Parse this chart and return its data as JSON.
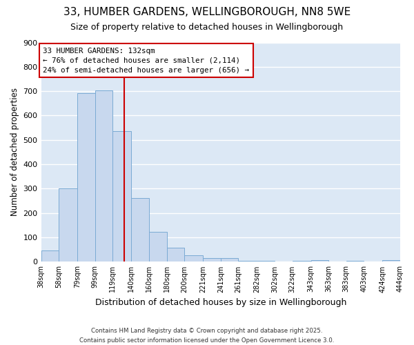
{
  "title_line1": "33, HUMBER GARDENS, WELLINGBOROUGH, NN8 5WE",
  "title_line2": "Size of property relative to detached houses in Wellingborough",
  "xlabel": "Distribution of detached houses by size in Wellingborough",
  "ylabel": "Number of detached properties",
  "bar_edges": [
    38,
    58,
    79,
    99,
    119,
    140,
    160,
    180,
    200,
    221,
    241,
    261,
    282,
    302,
    322,
    343,
    363,
    383,
    403,
    424,
    444
  ],
  "bar_heights": [
    47,
    300,
    693,
    703,
    537,
    262,
    122,
    57,
    27,
    14,
    15,
    5,
    3,
    1,
    5,
    8,
    1,
    4,
    1,
    8
  ],
  "bar_color": "#c8d8ee",
  "bar_edge_color": "#7aaad4",
  "plot_bg_color": "#dce8f5",
  "fig_bg_color": "#ffffff",
  "grid_color": "#ffffff",
  "vline_x": 132,
  "vline_color": "#cc0000",
  "annotation_text": "33 HUMBER GARDENS: 132sqm\n← 76% of detached houses are smaller (2,114)\n24% of semi-detached houses are larger (656) →",
  "annotation_box_color": "#cc0000",
  "ylim": [
    0,
    900
  ],
  "yticks": [
    0,
    100,
    200,
    300,
    400,
    500,
    600,
    700,
    800,
    900
  ],
  "footer_line1": "Contains HM Land Registry data © Crown copyright and database right 2025.",
  "footer_line2": "Contains public sector information licensed under the Open Government Licence 3.0."
}
